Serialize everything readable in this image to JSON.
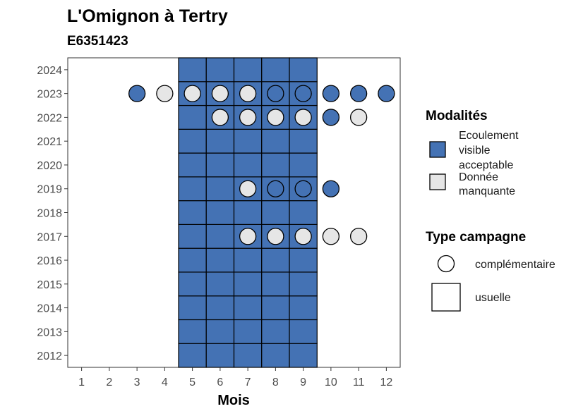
{
  "chart_data": {
    "type": "heatmap",
    "title": "L'Omignon à Tertry",
    "subtitle": "E6351423",
    "xlabel": "Mois",
    "ylabel": "",
    "x_ticks": [
      "1",
      "2",
      "3",
      "4",
      "5",
      "6",
      "7",
      "8",
      "9",
      "10",
      "11",
      "12"
    ],
    "y_ticks": [
      "2012",
      "2013",
      "2014",
      "2015",
      "2016",
      "2017",
      "2018",
      "2019",
      "2020",
      "2021",
      "2022",
      "2023",
      "2024"
    ],
    "xlim": [
      0.5,
      12.5
    ],
    "ylim": [
      2011.5,
      2024.5
    ],
    "grid": false,
    "legend_position": "right",
    "colors": {
      "Ecoulement visible acceptable": "#4472b4",
      "Donnée manquante": "#e6e6e6"
    },
    "legends": [
      {
        "title": "Modalités",
        "items": [
          {
            "label_lines": [
              "Ecoulement",
              "visible",
              "acceptable"
            ],
            "value": "Ecoulement visible acceptable"
          },
          {
            "label_lines": [
              "Donnée",
              "manquante"
            ],
            "value": "Donnée manquante"
          }
        ]
      },
      {
        "title": "Type campagne",
        "items": [
          {
            "label": "complémentaire",
            "shape": "circle"
          },
          {
            "label": "usuelle",
            "shape": "square"
          }
        ]
      }
    ],
    "usuelle_tiles": {
      "months": [
        5,
        6,
        7,
        8,
        9
      ],
      "years": [
        2012,
        2024
      ],
      "modalite": "Ecoulement visible acceptable"
    },
    "complementaire_points": [
      {
        "year": 2023,
        "month": 3,
        "modalite": "Ecoulement visible acceptable"
      },
      {
        "year": 2023,
        "month": 4,
        "modalite": "Donnée manquante"
      },
      {
        "year": 2023,
        "month": 5,
        "modalite": "Donnée manquante"
      },
      {
        "year": 2023,
        "month": 6,
        "modalite": "Donnée manquante"
      },
      {
        "year": 2023,
        "month": 7,
        "modalite": "Donnée manquante"
      },
      {
        "year": 2023,
        "month": 8,
        "modalite": "Ecoulement visible acceptable"
      },
      {
        "year": 2023,
        "month": 9,
        "modalite": "Ecoulement visible acceptable"
      },
      {
        "year": 2023,
        "month": 10,
        "modalite": "Ecoulement visible acceptable"
      },
      {
        "year": 2023,
        "month": 11,
        "modalite": "Ecoulement visible acceptable"
      },
      {
        "year": 2023,
        "month": 12,
        "modalite": "Ecoulement visible acceptable"
      },
      {
        "year": 2022,
        "month": 6,
        "modalite": "Donnée manquante"
      },
      {
        "year": 2022,
        "month": 7,
        "modalite": "Donnée manquante"
      },
      {
        "year": 2022,
        "month": 8,
        "modalite": "Donnée manquante"
      },
      {
        "year": 2022,
        "month": 9,
        "modalite": "Donnée manquante"
      },
      {
        "year": 2022,
        "month": 10,
        "modalite": "Ecoulement visible acceptable"
      },
      {
        "year": 2022,
        "month": 11,
        "modalite": "Donnée manquante"
      },
      {
        "year": 2019,
        "month": 7,
        "modalite": "Donnée manquante"
      },
      {
        "year": 2019,
        "month": 8,
        "modalite": "Ecoulement visible acceptable"
      },
      {
        "year": 2019,
        "month": 9,
        "modalite": "Ecoulement visible acceptable"
      },
      {
        "year": 2019,
        "month": 10,
        "modalite": "Ecoulement visible acceptable"
      },
      {
        "year": 2017,
        "month": 7,
        "modalite": "Donnée manquante"
      },
      {
        "year": 2017,
        "month": 8,
        "modalite": "Donnée manquante"
      },
      {
        "year": 2017,
        "month": 9,
        "modalite": "Donnée manquante"
      },
      {
        "year": 2017,
        "month": 10,
        "modalite": "Donnée manquante"
      },
      {
        "year": 2017,
        "month": 11,
        "modalite": "Donnée manquante"
      }
    ]
  }
}
